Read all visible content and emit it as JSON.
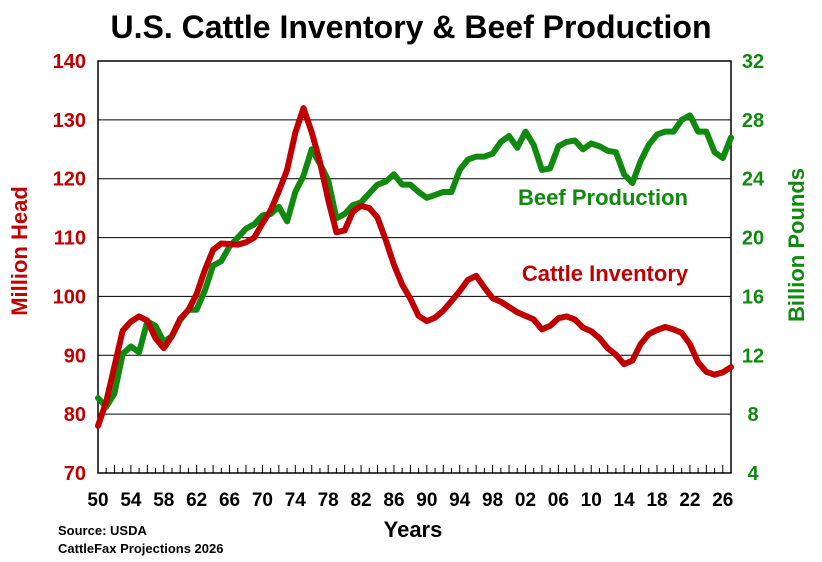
{
  "chart_data": {
    "type": "line",
    "title": "U.S. Cattle Inventory & Beef Production",
    "xlabel": "Years",
    "ylabel_left": "Million Head",
    "ylabel_right": "Billion Pounds",
    "ylim_left": [
      70,
      140
    ],
    "ylim_right": [
      4,
      32
    ],
    "yticks_left": [
      "70",
      "80",
      "90",
      "100",
      "110",
      "120",
      "130",
      "140"
    ],
    "yticks_right": [
      "4",
      "8",
      "12",
      "16",
      "20",
      "24",
      "28",
      "32"
    ],
    "xlim": [
      1950,
      2027
    ],
    "xtick_labels": [
      "50",
      "54",
      "58",
      "62",
      "66",
      "70",
      "74",
      "78",
      "82",
      "86",
      "90",
      "94",
      "98",
      "02",
      "06",
      "10",
      "14",
      "18",
      "22",
      "26"
    ],
    "grid": true,
    "colors": {
      "inventory": "#c00000",
      "production": "#0f8a0f"
    },
    "series": [
      {
        "name": "Cattle Inventory",
        "axis": "left",
        "x": [
          1950,
          1951,
          1952,
          1953,
          1954,
          1955,
          1956,
          1957,
          1958,
          1959,
          1960,
          1961,
          1962,
          1963,
          1964,
          1965,
          1966,
          1967,
          1968,
          1969,
          1970,
          1971,
          1972,
          1973,
          1974,
          1975,
          1976,
          1977,
          1978,
          1979,
          1980,
          1981,
          1982,
          1983,
          1984,
          1985,
          1986,
          1987,
          1988,
          1989,
          1990,
          1991,
          1992,
          1993,
          1994,
          1995,
          1996,
          1997,
          1998,
          1999,
          2000,
          2001,
          2002,
          2003,
          2004,
          2005,
          2006,
          2007,
          2008,
          2009,
          2010,
          2011,
          2012,
          2013,
          2014,
          2015,
          2016,
          2017,
          2018,
          2019,
          2020,
          2021,
          2022,
          2023,
          2024,
          2025,
          2026,
          2027
        ],
        "values": [
          78,
          82.1,
          88.1,
          94.2,
          95.7,
          96.6,
          95.9,
          92.9,
          91.2,
          93.3,
          96.2,
          97.7,
          100.4,
          104.5,
          107.9,
          109,
          108.9,
          108.8,
          109.2,
          110,
          112.4,
          114.6,
          117.9,
          121.5,
          127.8,
          132,
          127.9,
          122.8,
          116.4,
          110.9,
          111.2,
          114.4,
          115.4,
          115,
          113.4,
          109.6,
          105.4,
          102,
          99.6,
          96.7,
          95.8,
          96.4,
          97.6,
          99.2,
          100.9,
          102.8,
          103.5,
          101.5,
          99.7,
          99.1,
          98.2,
          97.3,
          96.7,
          96.1,
          94.4,
          95,
          96.3,
          96.6,
          96.1,
          94.7,
          94.1,
          92.9,
          91.2,
          90.1,
          88.5,
          89.1,
          91.9,
          93.6,
          94.3,
          94.8,
          94.4,
          93.8,
          91.9,
          88.8,
          87.2,
          86.7,
          87.1,
          88
        ]
      },
      {
        "name": "Beef Production",
        "axis": "right",
        "x": [
          1950,
          1951,
          1952,
          1953,
          1954,
          1955,
          1956,
          1957,
          1958,
          1959,
          1960,
          1961,
          1962,
          1963,
          1964,
          1965,
          1966,
          1967,
          1968,
          1969,
          1970,
          1971,
          1972,
          1973,
          1974,
          1975,
          1976,
          1977,
          1978,
          1979,
          1980,
          1981,
          1982,
          1983,
          1984,
          1985,
          1986,
          1987,
          1988,
          1989,
          1990,
          1991,
          1992,
          1993,
          1994,
          1995,
          1996,
          1997,
          1998,
          1999,
          2000,
          2001,
          2002,
          2003,
          2004,
          2005,
          2006,
          2007,
          2008,
          2009,
          2010,
          2011,
          2012,
          2013,
          2014,
          2015,
          2016,
          2017,
          2018,
          2019,
          2020,
          2021,
          2022,
          2023,
          2024,
          2025,
          2026,
          2027
        ],
        "values": [
          9.1,
          8.5,
          9.4,
          12.1,
          12.6,
          12.2,
          14.3,
          14,
          12.9,
          13.3,
          14.4,
          15.1,
          15.1,
          16.4,
          18.1,
          18.4,
          19.4,
          20,
          20.6,
          20.9,
          21.5,
          21.6,
          22.1,
          21.1,
          23.1,
          24.2,
          26,
          25,
          23.9,
          21.3,
          21.6,
          22.2,
          22.4,
          23,
          23.6,
          23.8,
          24.3,
          23.6,
          23.6,
          23.1,
          22.7,
          22.9,
          23.1,
          23.1,
          24.6,
          25.3,
          25.5,
          25.5,
          25.7,
          26.5,
          26.9,
          26.1,
          27.2,
          26.3,
          24.6,
          24.7,
          26.2,
          26.5,
          26.6,
          26,
          26.4,
          26.2,
          25.9,
          25.8,
          24.3,
          23.7,
          25.2,
          26.3,
          27,
          27.2,
          27.2,
          28,
          28.3,
          27.2,
          27.2,
          25.8,
          25.4,
          26.8
        ]
      }
    ],
    "annotations": [
      "Beef Production",
      "Cattle Inventory"
    ]
  },
  "footer": {
    "source": "Source: USDA",
    "projections": "CattleFax Projections 2026"
  }
}
